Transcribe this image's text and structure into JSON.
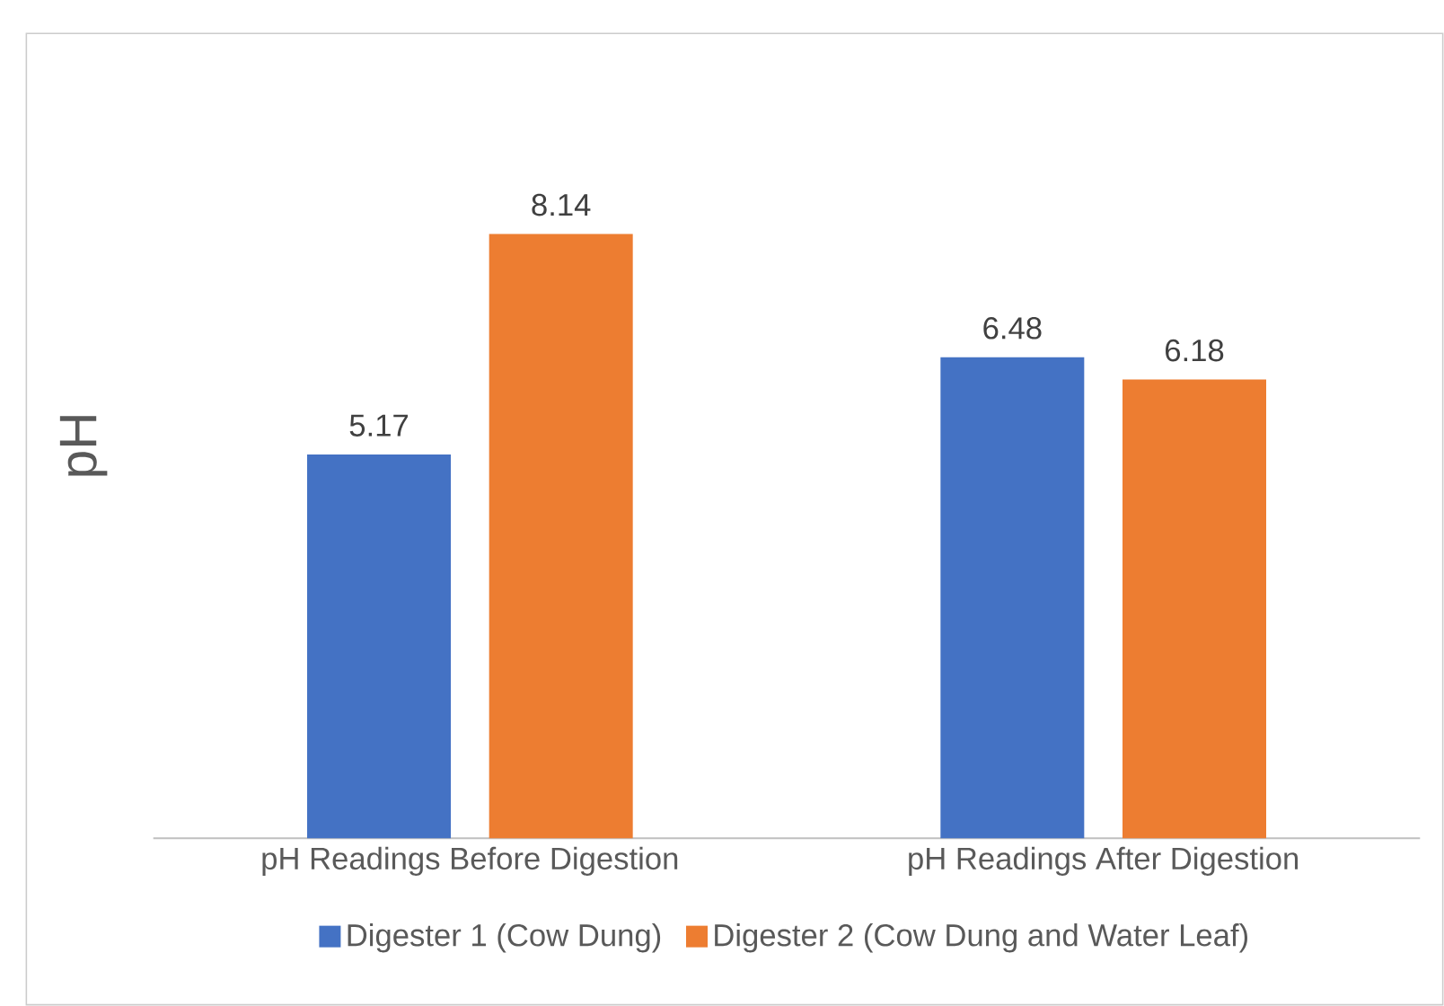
{
  "chart_data": {
    "type": "bar",
    "ylabel": "pH",
    "categories": [
      "pH Readings Before Digestion",
      "pH Readings After Digestion"
    ],
    "series": [
      {
        "name": "Digester 1 (Cow Dung)",
        "color": "#4472c4",
        "values": [
          5.17,
          6.48
        ]
      },
      {
        "name": "Digester 2 (Cow Dung and Water Leaf)",
        "color": "#ed7d31",
        "values": [
          8.14,
          6.18
        ]
      }
    ],
    "data_labels": true,
    "legend": "bottom"
  }
}
